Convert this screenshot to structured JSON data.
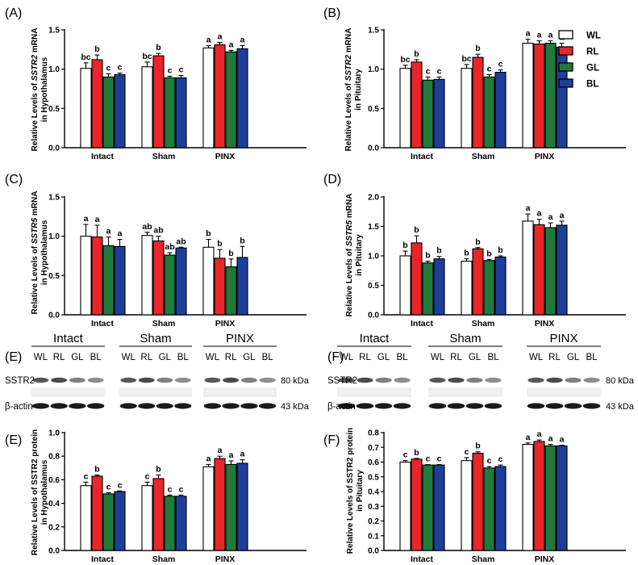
{
  "legend": {
    "items": [
      {
        "name": "WL",
        "color": "#ffffff"
      },
      {
        "name": "RL",
        "color": "#e8262a"
      },
      {
        "name": "GL",
        "color": "#1f7a3c"
      },
      {
        "name": "BL",
        "color": "#1d3f9a"
      }
    ]
  },
  "blots": [
    {
      "label": "(E)",
      "groups": [
        "Intact",
        "Sham",
        "PINX"
      ],
      "lanes": [
        "WL",
        "RL",
        "GL",
        "BL"
      ],
      "rows": [
        "SSTR2",
        "β-actin"
      ],
      "sizes": [
        "80 kDa",
        "43 kDa"
      ]
    },
    {
      "label": "(F)",
      "groups": [
        "Intact",
        "Sham",
        "PINX"
      ],
      "lanes": [
        "WL",
        "RL",
        "GL",
        "BL"
      ],
      "rows": [
        "SSTR2",
        "β-actin"
      ],
      "sizes": [
        "80 kDa",
        "43 kDa"
      ]
    }
  ],
  "chart_data": [
    {
      "label": "(A)",
      "type": "bar",
      "ylabel_pre": "Relative Levels of ",
      "ylabel_gene": "SSTR2",
      "ylabel_post": " mRNA",
      "ylabel2": "in Hypothalamus",
      "categories": [
        "Intact",
        "Sham",
        "PINX"
      ],
      "ylim": [
        0,
        1.5
      ],
      "ticks": [
        "0.0",
        "0.5",
        "1.0",
        "1.5"
      ],
      "tick_values": [
        0,
        0.5,
        1.0,
        1.5
      ],
      "series": [
        {
          "name": "WL",
          "values": [
            1.01,
            1.03,
            1.27
          ],
          "errors": [
            0.07,
            0.06,
            0.03
          ],
          "letters": [
            "bc",
            "bc",
            "a"
          ]
        },
        {
          "name": "RL",
          "values": [
            1.12,
            1.17,
            1.31
          ],
          "errors": [
            0.06,
            0.03,
            0.03
          ],
          "letters": [
            "b",
            "b",
            "a"
          ]
        },
        {
          "name": "GL",
          "values": [
            0.9,
            0.89,
            1.22
          ],
          "errors": [
            0.04,
            0.02,
            0.02
          ],
          "letters": [
            "c",
            "c",
            "a"
          ]
        },
        {
          "name": "BL",
          "values": [
            0.93,
            0.89,
            1.26
          ],
          "errors": [
            0.02,
            0.03,
            0.04
          ],
          "letters": [
            "c",
            "c",
            "a"
          ]
        }
      ]
    },
    {
      "label": "(B)",
      "type": "bar",
      "ylabel_pre": "Relative Levels of ",
      "ylabel_gene": "SSTR2",
      "ylabel_post": " mRNA",
      "ylabel2": "in Pituitary",
      "categories": [
        "Intact",
        "Sham",
        "PINX"
      ],
      "ylim": [
        0,
        1.5
      ],
      "ticks": [
        "0.0",
        "0.5",
        "1.0",
        "1.5"
      ],
      "tick_values": [
        0,
        0.5,
        1.0,
        1.5
      ],
      "series": [
        {
          "name": "WL",
          "values": [
            1.01,
            1.01,
            1.33
          ],
          "errors": [
            0.04,
            0.05,
            0.05
          ],
          "letters": [
            "bc",
            "bc",
            "a"
          ]
        },
        {
          "name": "RL",
          "values": [
            1.09,
            1.15,
            1.32
          ],
          "errors": [
            0.03,
            0.04,
            0.04
          ],
          "letters": [
            "b",
            "b",
            "a"
          ]
        },
        {
          "name": "GL",
          "values": [
            0.86,
            0.9,
            1.33
          ],
          "errors": [
            0.04,
            0.03,
            0.03
          ],
          "letters": [
            "c",
            "c",
            "a"
          ]
        },
        {
          "name": "BL",
          "values": [
            0.87,
            0.96,
            1.28
          ],
          "errors": [
            0.03,
            0.03,
            0.05
          ],
          "letters": [
            "c",
            "c",
            "a"
          ]
        }
      ]
    },
    {
      "label": "(C)",
      "type": "bar",
      "ylabel_pre": "Relative Levels of ",
      "ylabel_gene": "SSTR5",
      "ylabel_post": " mRNA",
      "ylabel2": "in Hypothalamus",
      "categories": [
        "Intact",
        "Sham",
        "PINX"
      ],
      "ylim": [
        0,
        1.5
      ],
      "ticks": [
        "0.0",
        "0.5",
        "1.0",
        "1.5"
      ],
      "tick_values": [
        0,
        0.5,
        1.0,
        1.5
      ],
      "series": [
        {
          "name": "WL",
          "values": [
            1.0,
            1.01,
            0.86
          ],
          "errors": [
            0.15,
            0.04,
            0.1
          ],
          "letters": [
            "a",
            "ab",
            "b"
          ]
        },
        {
          "name": "RL",
          "values": [
            0.99,
            0.94,
            0.72
          ],
          "errors": [
            0.15,
            0.06,
            0.11
          ],
          "letters": [
            "a",
            "ab",
            "b"
          ]
        },
        {
          "name": "GL",
          "values": [
            0.88,
            0.76,
            0.61
          ],
          "errors": [
            0.11,
            0.03,
            0.1
          ],
          "letters": [
            "a",
            "ab",
            "b"
          ]
        },
        {
          "name": "BL",
          "values": [
            0.87,
            0.85,
            0.73
          ],
          "errors": [
            0.09,
            0.01,
            0.14
          ],
          "letters": [
            "a",
            "ab",
            "b"
          ]
        }
      ]
    },
    {
      "label": "(D)",
      "type": "bar",
      "ylabel_pre": "Relative Levels of ",
      "ylabel_gene": "SSTR5",
      "ylabel_post": " mRNA",
      "ylabel2": "in Pituitary",
      "categories": [
        "Intact",
        "Sham",
        "PINX"
      ],
      "ylim": [
        0,
        2.0
      ],
      "ticks": [
        "0.0",
        "0.5",
        "1.0",
        "1.5",
        "2.0"
      ],
      "tick_values": [
        0,
        0.5,
        1.0,
        1.5,
        2.0
      ],
      "series": [
        {
          "name": "WL",
          "values": [
            1.0,
            0.91,
            1.59
          ],
          "errors": [
            0.08,
            0.04,
            0.12
          ],
          "letters": [
            "b",
            "b",
            "a"
          ]
        },
        {
          "name": "RL",
          "values": [
            1.22,
            1.12,
            1.53
          ],
          "errors": [
            0.12,
            0.02,
            0.09
          ],
          "letters": [
            "b",
            "b",
            "a"
          ]
        },
        {
          "name": "GL",
          "values": [
            0.88,
            0.92,
            1.48
          ],
          "errors": [
            0.03,
            0.02,
            0.08
          ],
          "letters": [
            "b",
            "b",
            "a"
          ]
        },
        {
          "name": "BL",
          "values": [
            0.95,
            0.98,
            1.52
          ],
          "errors": [
            0.04,
            0.02,
            0.07
          ],
          "letters": [
            "b",
            "b",
            "a"
          ]
        }
      ]
    },
    {
      "label": "(E)",
      "type": "bar",
      "ylabel_pre": "Relative Levels of SSTR2 protein",
      "ylabel_gene": "",
      "ylabel_post": "",
      "ylabel2": "in Hypothalamus",
      "categories": [
        "Intact",
        "Sham",
        "PINX"
      ],
      "ylim": [
        0,
        1.0
      ],
      "ticks": [
        "0.0",
        "0.2",
        "0.4",
        "0.6",
        "0.8",
        "1.0"
      ],
      "tick_values": [
        0,
        0.2,
        0.4,
        0.6,
        0.8,
        1.0
      ],
      "series": [
        {
          "name": "WL",
          "values": [
            0.55,
            0.55,
            0.71
          ],
          "errors": [
            0.03,
            0.03,
            0.02
          ],
          "letters": [
            "c",
            "c",
            "a"
          ]
        },
        {
          "name": "RL",
          "values": [
            0.63,
            0.61,
            0.78
          ],
          "errors": [
            0.01,
            0.03,
            0.02
          ],
          "letters": [
            "b",
            "b",
            "a"
          ]
        },
        {
          "name": "GL",
          "values": [
            0.48,
            0.46,
            0.73
          ],
          "errors": [
            0.01,
            0.01,
            0.03
          ],
          "letters": [
            "c",
            "c",
            "a"
          ]
        },
        {
          "name": "BL",
          "values": [
            0.5,
            0.46,
            0.74
          ],
          "errors": [
            0.005,
            0.01,
            0.03
          ],
          "letters": [
            "c",
            "c",
            "a"
          ]
        }
      ]
    },
    {
      "label": "(F)",
      "type": "bar",
      "ylabel_pre": "Relative Levels of SSTR2 protein",
      "ylabel_gene": "",
      "ylabel_post": "",
      "ylabel2": "in Pituitary",
      "categories": [
        "Intact",
        "Sham",
        "PINX"
      ],
      "ylim": [
        0,
        0.8
      ],
      "ticks": [
        "0.0",
        "0.1",
        "0.2",
        "0.3",
        "0.4",
        "0.5",
        "0.6",
        "0.7",
        "0.8"
      ],
      "tick_values": [
        0,
        0.1,
        0.2,
        0.3,
        0.4,
        0.5,
        0.6,
        0.7,
        0.8
      ],
      "series": [
        {
          "name": "WL",
          "values": [
            0.6,
            0.61,
            0.72
          ],
          "errors": [
            0.01,
            0.02,
            0.01
          ],
          "letters": [
            "c",
            "c",
            "a"
          ]
        },
        {
          "name": "RL",
          "values": [
            0.62,
            0.66,
            0.74
          ],
          "errors": [
            0.005,
            0.01,
            0.01
          ],
          "letters": [
            "b",
            "b",
            "a"
          ]
        },
        {
          "name": "GL",
          "values": [
            0.58,
            0.56,
            0.71
          ],
          "errors": [
            0.003,
            0.01,
            0.01
          ],
          "letters": [
            "c",
            "c",
            "a"
          ]
        },
        {
          "name": "BL",
          "values": [
            0.58,
            0.57,
            0.71
          ],
          "errors": [
            0.003,
            0.01,
            0.005
          ],
          "letters": [
            "c",
            "c",
            "a"
          ]
        }
      ]
    }
  ]
}
